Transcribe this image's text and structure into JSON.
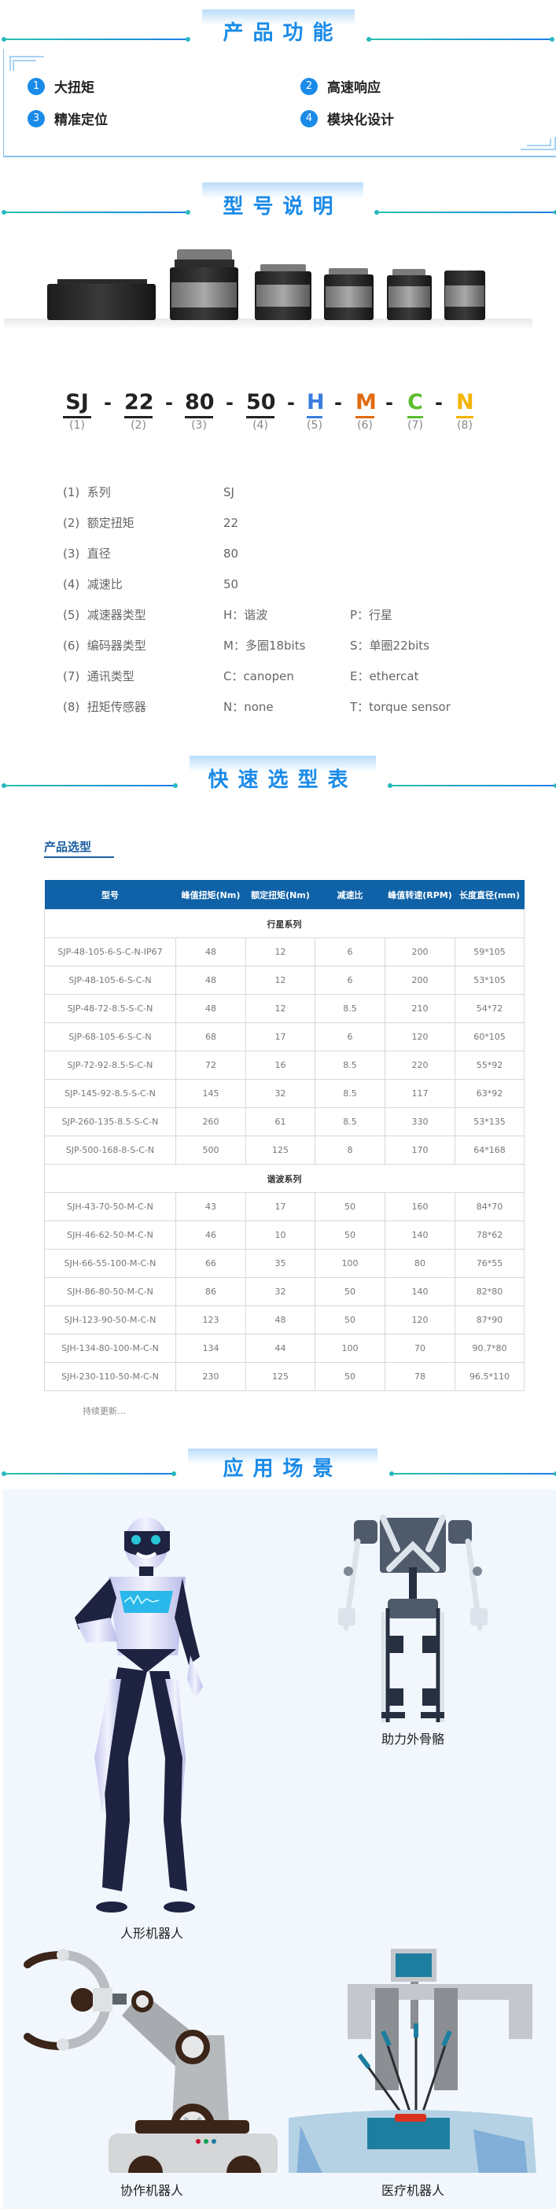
{
  "sections": {
    "features_title": "产品功能",
    "model_title": "型号说明",
    "selection_title": "快速选型表",
    "scenes_title": "应用场景"
  },
  "features": [
    {
      "num": "1",
      "label": "大扭矩"
    },
    {
      "num": "2",
      "label": "高速响应"
    },
    {
      "num": "3",
      "label": "精准定位"
    },
    {
      "num": "4",
      "label": "模块化设计"
    }
  ],
  "model_code": {
    "segments": [
      {
        "text": "SJ",
        "label": "(1)",
        "color": "#222222"
      },
      {
        "text": "22",
        "label": "(2)",
        "color": "#222222"
      },
      {
        "text": "80",
        "label": "(3)",
        "color": "#222222"
      },
      {
        "text": "50",
        "label": "(4)",
        "color": "#222222"
      },
      {
        "text": "H",
        "label": "(5)",
        "color": "#3b7ddd"
      },
      {
        "text": "M",
        "label": "(6)",
        "color": "#e06a10"
      },
      {
        "text": "C",
        "label": "(7)",
        "color": "#5bbd2b"
      },
      {
        "text": "N",
        "label": "(8)",
        "color": "#f3b300"
      }
    ],
    "separator": "-"
  },
  "specs": [
    {
      "num": "(1)",
      "name": "系列",
      "v1": "SJ",
      "v2": ""
    },
    {
      "num": "(2)",
      "name": "额定扭矩",
      "v1": "22",
      "v2": ""
    },
    {
      "num": "(3)",
      "name": "直径",
      "v1": "80",
      "v2": ""
    },
    {
      "num": "(4)",
      "name": "减速比",
      "v1": "50",
      "v2": ""
    },
    {
      "num": "(5)",
      "name": "减速器类型",
      "v1": "H：谐波",
      "v2": "P：行星"
    },
    {
      "num": "(6)",
      "name": "编码器类型",
      "v1": "M：多圈18bits",
      "v2": "S：单圈22bits"
    },
    {
      "num": "(7)",
      "name": "通讯类型",
      "v1": "C：canopen",
      "v2": "E：ethercat"
    },
    {
      "num": "(8)",
      "name": "扭矩传感器",
      "v1": "N：none",
      "v2": "T：torque sensor"
    }
  ],
  "selection": {
    "subtitle": "产品选型",
    "headers": [
      "型号",
      "峰值扭矩(Nm)",
      "额定扭矩(Nm)",
      "减速比",
      "峰值转速(RPM)",
      "长度直径(mm)"
    ],
    "groups": [
      {
        "name": "行星系列",
        "rows": [
          [
            "SJP-48-105-6-S-C-N-IP67",
            "48",
            "12",
            "6",
            "200",
            "59*105"
          ],
          [
            "SJP-48-105-6-S-C-N",
            "48",
            "12",
            "6",
            "200",
            "53*105"
          ],
          [
            "SJP-48-72-8.5-S-C-N",
            "48",
            "12",
            "8.5",
            "210",
            "54*72"
          ],
          [
            "SJP-68-105-6-S-C-N",
            "68",
            "17",
            "6",
            "120",
            "60*105"
          ],
          [
            "SJP-72-92-8.5-S-C-N",
            "72",
            "16",
            "8.5",
            "220",
            "55*92"
          ],
          [
            "SJP-145-92-8.5-S-C-N",
            "145",
            "32",
            "8.5",
            "117",
            "63*92"
          ],
          [
            "SJP-260-135-8.5-S-C-N",
            "260",
            "61",
            "8.5",
            "330",
            "53*135"
          ],
          [
            "SJP-500-168-8-S-C-N",
            "500",
            "125",
            "8",
            "170",
            "64*168"
          ]
        ]
      },
      {
        "name": "谐波系列",
        "rows": [
          [
            "SJH-43-70-50-M-C-N",
            "43",
            "17",
            "50",
            "160",
            "84*70"
          ],
          [
            "SJH-46-62-50-M-C-N",
            "46",
            "10",
            "50",
            "140",
            "78*62"
          ],
          [
            "SJH-66-55-100-M-C-N",
            "66",
            "35",
            "100",
            "80",
            "76*55"
          ],
          [
            "SJH-86-80-50-M-C-N",
            "86",
            "32",
            "50",
            "140",
            "82*80"
          ],
          [
            "SJH-123-90-50-M-C-N",
            "123",
            "48",
            "50",
            "120",
            "87*90"
          ],
          [
            "SJH-134-80-100-M-C-N",
            "134",
            "44",
            "100",
            "70",
            "90.7*80"
          ],
          [
            "SJH-230-110-50-M-C-N",
            "230",
            "125",
            "50",
            "78",
            "96.5*110"
          ]
        ]
      }
    ],
    "note": "持续更新…"
  },
  "scenes": [
    {
      "label": "人形机器人",
      "icon": "humanoid-robot"
    },
    {
      "label": "助力外骨骼",
      "icon": "exoskeleton"
    },
    {
      "label": "协作机器人",
      "icon": "robot-arm"
    },
    {
      "label": "医疗机器人",
      "icon": "surgical-robot"
    }
  ],
  "colors": {
    "title_blue": "#1a8be8",
    "table_header": "#0f62a8",
    "panel_bg": "#f1f7fd"
  }
}
